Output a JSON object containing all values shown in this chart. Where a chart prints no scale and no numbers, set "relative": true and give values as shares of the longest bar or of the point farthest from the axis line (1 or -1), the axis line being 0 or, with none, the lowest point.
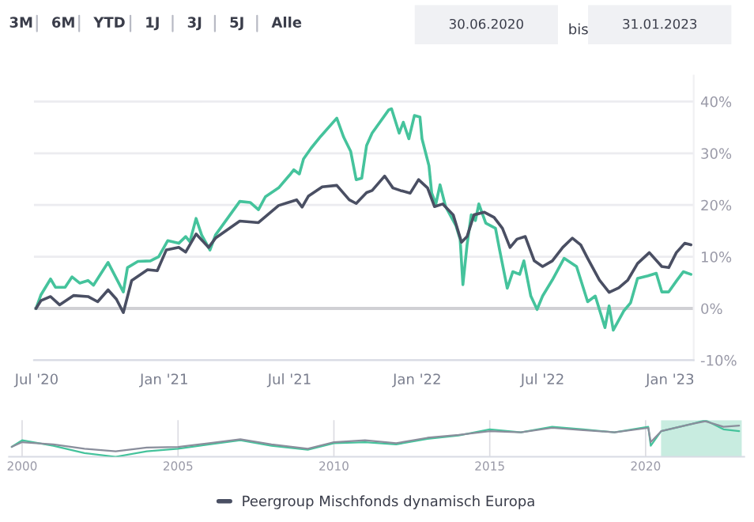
{
  "chart_data": [
    {
      "type": "line",
      "annotations": [
        "3M",
        "6M",
        "YTD",
        "1J",
        "3J",
        "5J",
        "Alle",
        "30.06.2020",
        "bis",
        "31.01.2023"
      ],
      "series": [
        {
          "color": "#45c39c",
          "x": [
            "2020-06-30",
            "2020-07-07",
            "2020-07-21",
            "2020-07-28",
            "2020-08-11",
            "2020-08-21",
            "2020-09-01",
            "2020-09-13",
            "2020-09-21",
            "2020-10-12",
            "2020-10-24",
            "2020-11-03",
            "2020-11-09",
            "2020-11-24",
            "2020-12-12",
            "2020-12-24",
            "2021-01-06",
            "2021-01-22",
            "2021-02-01",
            "2021-02-07",
            "2021-02-16",
            "2021-02-24",
            "2021-03-08",
            "2021-03-16",
            "2021-04-06",
            "2021-04-20",
            "2021-05-05",
            "2021-05-17",
            "2021-05-27",
            "2021-06-15",
            "2021-07-01",
            "2021-07-07",
            "2021-07-15",
            "2021-07-21",
            "2021-08-01",
            "2021-08-15",
            "2021-09-07",
            "2021-09-17",
            "2021-09-27",
            "2021-10-05",
            "2021-10-13",
            "2021-10-20",
            "2021-10-28",
            "2021-11-21",
            "2021-11-25",
            "2021-12-06",
            "2021-12-12",
            "2021-12-20",
            "2021-12-28",
            "2022-01-05",
            "2022-01-08",
            "2022-01-18",
            "2022-01-22",
            "2022-01-28",
            "2022-02-03",
            "2022-02-11",
            "2022-02-26",
            "2022-03-04",
            "2022-03-08",
            "2022-03-14",
            "2022-03-20",
            "2022-03-26",
            "2022-03-31",
            "2022-04-10",
            "2022-04-24",
            "2022-04-30",
            "2022-05-11",
            "2022-05-19",
            "2022-05-29",
            "2022-06-04",
            "2022-06-14",
            "2022-06-23",
            "2022-07-01",
            "2022-07-15",
            "2022-08-01",
            "2022-08-19",
            "2022-09-04",
            "2022-09-15",
            "2022-09-29",
            "2022-10-05",
            "2022-10-11",
            "2022-10-26",
            "2022-11-05",
            "2022-11-15",
            "2022-11-30",
            "2022-12-12",
            "2022-12-20",
            "2022-12-30",
            "2023-01-10",
            "2023-01-20",
            "2023-01-31"
          ],
          "values": [
            0,
            2.6,
            5.7,
            4.1,
            4.1,
            6.1,
            4.9,
            5.4,
            4.5,
            8.9,
            5.8,
            3.2,
            7.9,
            9.1,
            9.2,
            10,
            13.1,
            12.6,
            13.9,
            12.9,
            17.4,
            14.2,
            11.3,
            14.2,
            18.1,
            20.7,
            20.5,
            19.1,
            21.6,
            23.3,
            25.8,
            26.8,
            26,
            28.9,
            31,
            33.3,
            36.8,
            33.1,
            30.4,
            24.9,
            25.2,
            31.5,
            33.9,
            38.4,
            38.6,
            33.9,
            36,
            32.8,
            37.3,
            37,
            32.8,
            27.6,
            22.3,
            20.2,
            23.9,
            19.7,
            16,
            13.4,
            4.6,
            12.3,
            18.1,
            17,
            20.2,
            16.5,
            15.5,
            11.3,
            3.9,
            7.1,
            6.6,
            9.2,
            2.4,
            -0.2,
            2.4,
            5.5,
            9.7,
            8.1,
            1.3,
            2.4,
            -3.7,
            0.5,
            -4.2,
            -0.5,
            1.1,
            5.8,
            6.3,
            6.8,
            3.2,
            3.2,
            5.3,
            7.1,
            6.6
          ]
        },
        {
          "name": "Peergroup Mischfonds dynamisch Europa",
          "color": "#4a4f63",
          "x": [
            "2020-06-30",
            "2020-07-07",
            "2020-07-21",
            "2020-08-03",
            "2020-08-23",
            "2020-09-13",
            "2020-09-27",
            "2020-10-12",
            "2020-10-24",
            "2020-11-03",
            "2020-11-15",
            "2020-12-08",
            "2020-12-22",
            "2021-01-04",
            "2021-01-22",
            "2021-02-01",
            "2021-02-16",
            "2021-03-06",
            "2021-03-16",
            "2021-04-20",
            "2021-05-17",
            "2021-06-15",
            "2021-07-11",
            "2021-07-19",
            "2021-07-28",
            "2021-08-17",
            "2021-09-07",
            "2021-09-25",
            "2021-10-05",
            "2021-10-20",
            "2021-10-28",
            "2021-11-15",
            "2021-11-27",
            "2021-12-08",
            "2021-12-22",
            "2022-01-03",
            "2022-01-16",
            "2022-01-26",
            "2022-02-07",
            "2022-02-22",
            "2022-03-06",
            "2022-03-14",
            "2022-03-24",
            "2022-04-08",
            "2022-04-22",
            "2022-05-04",
            "2022-05-15",
            "2022-05-25",
            "2022-06-06",
            "2022-06-19",
            "2022-07-01",
            "2022-07-15",
            "2022-07-30",
            "2022-08-13",
            "2022-08-25",
            "2022-09-04",
            "2022-09-21",
            "2022-10-05",
            "2022-10-19",
            "2022-11-01",
            "2022-11-15",
            "2022-12-02",
            "2022-12-20",
            "2022-12-30",
            "2023-01-10",
            "2023-01-22",
            "2023-01-31"
          ],
          "values": [
            0,
            1.5,
            2.3,
            0.7,
            2.5,
            2.3,
            1.3,
            3.6,
            1.8,
            -0.8,
            5.4,
            7.5,
            7.3,
            11.3,
            11.8,
            10.9,
            14.4,
            11.8,
            13.6,
            16.9,
            16.6,
            19.9,
            21,
            19.6,
            21.7,
            23.5,
            23.8,
            21,
            20.3,
            22.4,
            22.8,
            25.6,
            23.3,
            22.8,
            22.3,
            24.9,
            23.3,
            19.7,
            20.2,
            18.1,
            12.8,
            13.9,
            18.1,
            18.6,
            17.6,
            15.5,
            11.8,
            13.4,
            13.9,
            9.2,
            8.1,
            9.2,
            11.8,
            13.6,
            12.3,
            9.7,
            5.5,
            3.1,
            4,
            5.5,
            8.7,
            10.8,
            8.1,
            7.9,
            10.8,
            12.6,
            12.3
          ]
        }
      ],
      "xlim": [
        "2020-06-27",
        "2023-02-04"
      ],
      "xticks": [
        {
          "value": "2020-07-01",
          "label": "Jul '20"
        },
        {
          "value": "2021-01-01",
          "label": "Jan '21"
        },
        {
          "value": "2021-07-01",
          "label": "Jul '21"
        },
        {
          "value": "2022-01-01",
          "label": "Jan '22"
        },
        {
          "value": "2022-07-01",
          "label": "Jul '22"
        },
        {
          "value": "2023-01-01",
          "label": "Jan '23"
        }
      ],
      "ylim": [
        -10,
        45
      ],
      "yticks": [
        {
          "value": -10,
          "label": "-10%"
        },
        {
          "value": 0,
          "label": "0%"
        },
        {
          "value": 10,
          "label": "10%"
        },
        {
          "value": 20,
          "label": "20%"
        },
        {
          "value": 30,
          "label": "30%"
        },
        {
          "value": 40,
          "label": "40%"
        }
      ],
      "grid": "y",
      "legend": "bottom",
      "ref_lines": [
        {
          "axis": "y",
          "value": 0,
          "color": "#d0d0d4"
        }
      ]
    },
    {
      "type": "line",
      "relative": true,
      "tick_labels": "x",
      "grid": "x",
      "series": [
        {
          "color": "#45c39c",
          "x": [
            "1999-09",
            "2000-01",
            "2001-01",
            "2002-01",
            "2003-01",
            "2004-01",
            "2005-01",
            "2006-01",
            "2007-01",
            "2008-01",
            "2009-03",
            "2010-01",
            "2011-01",
            "2012-01",
            "2013-01",
            "2014-01",
            "2015-01",
            "2016-01",
            "2017-01",
            "2018-01",
            "2019-01",
            "2020-02",
            "2020-03",
            "2020-07",
            "2021-07",
            "2021-12",
            "2022-07",
            "2023-01"
          ],
          "values": [
            0.27,
            0.45,
            0.3,
            0.1,
            0,
            0.15,
            0.22,
            0.34,
            0.45,
            0.3,
            0.19,
            0.37,
            0.4,
            0.34,
            0.49,
            0.58,
            0.75,
            0.67,
            0.82,
            0.75,
            0.67,
            0.82,
            0.3,
            0.7,
            0.9,
            1,
            0.75,
            0.7
          ]
        },
        {
          "color": "#8a8e9c",
          "x": [
            "1999-09",
            "2000-01",
            "2001-01",
            "2002-01",
            "2003-01",
            "2004-01",
            "2005-01",
            "2006-01",
            "2007-01",
            "2008-01",
            "2009-03",
            "2010-01",
            "2011-01",
            "2012-01",
            "2013-01",
            "2014-01",
            "2015-01",
            "2016-01",
            "2017-01",
            "2018-01",
            "2019-01",
            "2020-02",
            "2020-03",
            "2020-07",
            "2021-07",
            "2021-12",
            "2022-07",
            "2023-01"
          ],
          "values": [
            0.27,
            0.4,
            0.34,
            0.22,
            0.15,
            0.25,
            0.27,
            0.37,
            0.48,
            0.34,
            0.22,
            0.4,
            0.45,
            0.37,
            0.52,
            0.6,
            0.7,
            0.67,
            0.79,
            0.73,
            0.67,
            0.79,
            0.4,
            0.7,
            0.9,
            0.97,
            0.82,
            0.85
          ]
        }
      ],
      "xlim": [
        "1999-08-01",
        "2023-03-01"
      ],
      "xticks": [
        {
          "value": "2000-01-01",
          "label": "2000"
        },
        {
          "value": "2005-01-01",
          "label": "2005"
        },
        {
          "value": "2010-01-01",
          "label": "2010"
        },
        {
          "value": "2015-01-01",
          "label": "2015"
        },
        {
          "value": "2020-01-01",
          "label": "2020"
        }
      ],
      "bands": [
        {
          "axis": "x",
          "from": "2020-06-30",
          "to": "2023-01-31",
          "color": "#c8ece0"
        }
      ]
    }
  ]
}
